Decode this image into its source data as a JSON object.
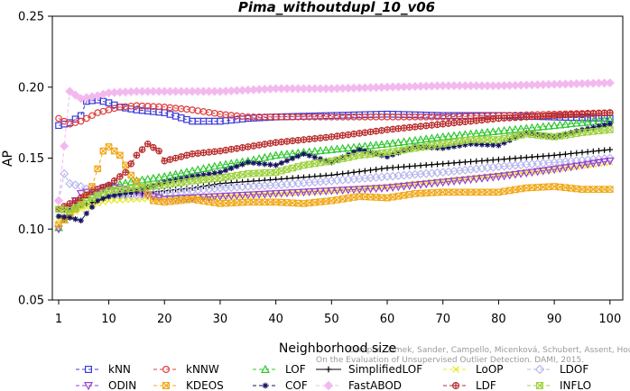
{
  "chart_data": {
    "type": "line",
    "title": "Pima_withoutdupl_10_v06",
    "xlabel": "Neighborhood size",
    "ylabel": "AP",
    "xlim": [
      1,
      100
    ],
    "ylim": [
      0.05,
      0.25
    ],
    "xticks": [
      1,
      10,
      20,
      30,
      40,
      50,
      60,
      70,
      80,
      90,
      100
    ],
    "yticks": [
      0.05,
      0.1,
      0.15,
      0.2,
      0.25
    ],
    "ytick_labels": [
      "0.05",
      "0.10",
      "0.15",
      "0.20",
      "0.25"
    ],
    "grid": false,
    "legend_position": "bottom",
    "watermark": [
      "Campos, Zimek, Sander, Campello, Micenková, Schubert, Assent, Houle:",
      "On the Evaluation of Unsupervised Outlier Detection. DAMI, 2015."
    ],
    "series": [
      {
        "name": "kNN",
        "color": "#3b3bd9",
        "marker": "square",
        "dash": "4,3",
        "points": [
          [
            1,
            0.173
          ],
          [
            3,
            0.175
          ],
          [
            5,
            0.18
          ],
          [
            6,
            0.19
          ],
          [
            8,
            0.191
          ],
          [
            10,
            0.189
          ],
          [
            12,
            0.186
          ],
          [
            15,
            0.184
          ],
          [
            20,
            0.182
          ],
          [
            25,
            0.176
          ],
          [
            30,
            0.176
          ],
          [
            35,
            0.178
          ],
          [
            40,
            0.179
          ],
          [
            50,
            0.18
          ],
          [
            60,
            0.181
          ],
          [
            70,
            0.18
          ],
          [
            80,
            0.18
          ],
          [
            90,
            0.179
          ],
          [
            100,
            0.178
          ]
        ]
      },
      {
        "name": "kNNW",
        "color": "#e03c3c",
        "marker": "circle",
        "dash": "4,3",
        "points": [
          [
            1,
            0.178
          ],
          [
            3,
            0.174
          ],
          [
            5,
            0.176
          ],
          [
            8,
            0.182
          ],
          [
            12,
            0.186
          ],
          [
            15,
            0.187
          ],
          [
            20,
            0.186
          ],
          [
            25,
            0.184
          ],
          [
            30,
            0.181
          ],
          [
            35,
            0.179
          ],
          [
            40,
            0.179
          ],
          [
            50,
            0.179
          ],
          [
            60,
            0.179
          ],
          [
            70,
            0.179
          ],
          [
            80,
            0.18
          ],
          [
            90,
            0.181
          ],
          [
            100,
            0.182
          ]
        ]
      },
      {
        "name": "LOF",
        "color": "#2ec82e",
        "marker": "triangle-up",
        "dash": "4,3",
        "points": [
          [
            1,
            0.101
          ],
          [
            3,
            0.112
          ],
          [
            5,
            0.12
          ],
          [
            8,
            0.126
          ],
          [
            10,
            0.13
          ],
          [
            15,
            0.134
          ],
          [
            20,
            0.137
          ],
          [
            25,
            0.141
          ],
          [
            30,
            0.145
          ],
          [
            35,
            0.148
          ],
          [
            40,
            0.152
          ],
          [
            50,
            0.156
          ],
          [
            60,
            0.16
          ],
          [
            70,
            0.165
          ],
          [
            80,
            0.169
          ],
          [
            90,
            0.173
          ],
          [
            100,
            0.177
          ]
        ]
      },
      {
        "name": "SimplifiedLOF",
        "color": "#000000",
        "marker": "plus",
        "dash": "",
        "points": [
          [
            1,
            0.114
          ],
          [
            3,
            0.114
          ],
          [
            5,
            0.116
          ],
          [
            8,
            0.12
          ],
          [
            10,
            0.123
          ],
          [
            15,
            0.125
          ],
          [
            20,
            0.127
          ],
          [
            25,
            0.129
          ],
          [
            30,
            0.132
          ],
          [
            40,
            0.135
          ],
          [
            50,
            0.138
          ],
          [
            60,
            0.143
          ],
          [
            70,
            0.146
          ],
          [
            80,
            0.149
          ],
          [
            90,
            0.152
          ],
          [
            100,
            0.156
          ]
        ]
      },
      {
        "name": "LoOP",
        "color": "#e8e82a",
        "marker": "x",
        "dash": "4,3",
        "points": [
          [
            1,
            0.107
          ],
          [
            3,
            0.11
          ],
          [
            5,
            0.114
          ],
          [
            8,
            0.118
          ],
          [
            10,
            0.12
          ],
          [
            15,
            0.121
          ],
          [
            20,
            0.122
          ],
          [
            25,
            0.122
          ],
          [
            30,
            0.123
          ],
          [
            40,
            0.125
          ],
          [
            50,
            0.127
          ],
          [
            60,
            0.13
          ],
          [
            70,
            0.134
          ],
          [
            80,
            0.138
          ],
          [
            90,
            0.142
          ],
          [
            100,
            0.147
          ]
        ]
      },
      {
        "name": "LDOF",
        "color": "#b7b7ee",
        "marker": "diamond",
        "dash": "4,3",
        "points": [
          [
            1,
            0.12
          ],
          [
            2,
            0.139
          ],
          [
            3,
            0.132
          ],
          [
            5,
            0.13
          ],
          [
            8,
            0.125
          ],
          [
            10,
            0.124
          ],
          [
            15,
            0.124
          ],
          [
            20,
            0.125
          ],
          [
            25,
            0.127
          ],
          [
            30,
            0.129
          ],
          [
            40,
            0.131
          ],
          [
            50,
            0.134
          ],
          [
            60,
            0.137
          ],
          [
            70,
            0.14
          ],
          [
            80,
            0.144
          ],
          [
            90,
            0.147
          ],
          [
            100,
            0.15
          ]
        ]
      },
      {
        "name": "ODIN",
        "color": "#9a3ed1",
        "marker": "triangle-down",
        "dash": "4,3",
        "points": [
          [
            1,
            0.1
          ],
          [
            3,
            0.115
          ],
          [
            5,
            0.125
          ],
          [
            8,
            0.128
          ],
          [
            10,
            0.13
          ],
          [
            15,
            0.126
          ],
          [
            20,
            0.121
          ],
          [
            25,
            0.122
          ],
          [
            30,
            0.123
          ],
          [
            40,
            0.125
          ],
          [
            50,
            0.127
          ],
          [
            60,
            0.129
          ],
          [
            70,
            0.133
          ],
          [
            80,
            0.137
          ],
          [
            90,
            0.142
          ],
          [
            100,
            0.148
          ]
        ]
      },
      {
        "name": "KDEOS",
        "color": "#f0a818",
        "marker": "square-x",
        "dash": "4,3",
        "points": [
          [
            1,
            0.103
          ],
          [
            3,
            0.11
          ],
          [
            5,
            0.118
          ],
          [
            7,
            0.13
          ],
          [
            9,
            0.155
          ],
          [
            10,
            0.158
          ],
          [
            12,
            0.152
          ],
          [
            14,
            0.138
          ],
          [
            16,
            0.129
          ],
          [
            18,
            0.12
          ],
          [
            20,
            0.119
          ],
          [
            25,
            0.121
          ],
          [
            30,
            0.118
          ],
          [
            35,
            0.119
          ],
          [
            40,
            0.119
          ],
          [
            45,
            0.118
          ],
          [
            50,
            0.12
          ],
          [
            55,
            0.123
          ],
          [
            60,
            0.122
          ],
          [
            65,
            0.125
          ],
          [
            70,
            0.126
          ],
          [
            75,
            0.126
          ],
          [
            80,
            0.126
          ],
          [
            85,
            0.129
          ],
          [
            90,
            0.13
          ],
          [
            95,
            0.128
          ],
          [
            100,
            0.128
          ]
        ]
      },
      {
        "name": "LDF",
        "color": "#b82828",
        "marker": "circle-plus",
        "dash": "4,3",
        "points": [
          [
            1,
            0.114
          ],
          [
            3,
            0.118
          ],
          [
            5,
            0.122
          ],
          [
            8,
            0.128
          ],
          [
            10,
            0.131
          ],
          [
            13,
            0.14
          ],
          [
            15,
            0.152
          ],
          [
            17,
            0.16
          ],
          [
            19,
            0.155
          ],
          [
            20,
            0.148
          ],
          [
            22,
            0.15
          ],
          [
            25,
            0.153
          ],
          [
            30,
            0.155
          ],
          [
            35,
            0.158
          ],
          [
            40,
            0.161
          ],
          [
            50,
            0.165
          ],
          [
            60,
            0.17
          ],
          [
            70,
            0.174
          ],
          [
            80,
            0.178
          ],
          [
            90,
            0.18
          ],
          [
            100,
            0.182
          ]
        ]
      },
      {
        "name": "COF",
        "color": "#14145e",
        "marker": "asterisk",
        "dash": "4,3",
        "points": [
          [
            1,
            0.109
          ],
          [
            3,
            0.108
          ],
          [
            5,
            0.106
          ],
          [
            6,
            0.111
          ],
          [
            8,
            0.12
          ],
          [
            10,
            0.123
          ],
          [
            15,
            0.127
          ],
          [
            20,
            0.133
          ],
          [
            25,
            0.137
          ],
          [
            30,
            0.14
          ],
          [
            35,
            0.147
          ],
          [
            40,
            0.145
          ],
          [
            45,
            0.153
          ],
          [
            50,
            0.147
          ],
          [
            55,
            0.156
          ],
          [
            60,
            0.151
          ],
          [
            65,
            0.158
          ],
          [
            70,
            0.157
          ],
          [
            75,
            0.16
          ],
          [
            80,
            0.159
          ],
          [
            85,
            0.168
          ],
          [
            90,
            0.165
          ],
          [
            95,
            0.17
          ],
          [
            100,
            0.174
          ]
        ]
      },
      {
        "name": "FastABOD",
        "color": "#f3b9ef",
        "marker": "diamond-filled",
        "dash": "4,3",
        "points": [
          [
            1,
            0.12
          ],
          [
            3,
            0.197
          ],
          [
            5,
            0.192
          ],
          [
            8,
            0.194
          ],
          [
            10,
            0.196
          ],
          [
            15,
            0.197
          ],
          [
            20,
            0.197
          ],
          [
            30,
            0.197
          ],
          [
            40,
            0.199
          ],
          [
            50,
            0.199
          ],
          [
            60,
            0.2
          ],
          [
            70,
            0.201
          ],
          [
            80,
            0.201
          ],
          [
            90,
            0.202
          ],
          [
            100,
            0.203
          ]
        ]
      },
      {
        "name": "INFLO",
        "color": "#9dd13d",
        "marker": "square-x",
        "dash": "4,3",
        "points": [
          [
            1,
            0.114
          ],
          [
            3,
            0.113
          ],
          [
            5,
            0.117
          ],
          [
            8,
            0.124
          ],
          [
            10,
            0.127
          ],
          [
            15,
            0.129
          ],
          [
            20,
            0.131
          ],
          [
            25,
            0.134
          ],
          [
            30,
            0.136
          ],
          [
            35,
            0.139
          ],
          [
            40,
            0.14
          ],
          [
            45,
            0.145
          ],
          [
            50,
            0.148
          ],
          [
            55,
            0.152
          ],
          [
            60,
            0.154
          ],
          [
            65,
            0.157
          ],
          [
            70,
            0.16
          ],
          [
            75,
            0.163
          ],
          [
            80,
            0.163
          ],
          [
            85,
            0.167
          ],
          [
            90,
            0.165
          ],
          [
            95,
            0.168
          ],
          [
            100,
            0.17
          ]
        ]
      }
    ],
    "legend_rows": [
      [
        "kNN",
        "kNNW",
        "LOF",
        "SimplifiedLOF",
        "LoOP",
        "LDOF"
      ],
      [
        "ODIN",
        "KDEOS",
        "COF",
        "FastABOD",
        "LDF",
        "INFLO"
      ]
    ]
  }
}
